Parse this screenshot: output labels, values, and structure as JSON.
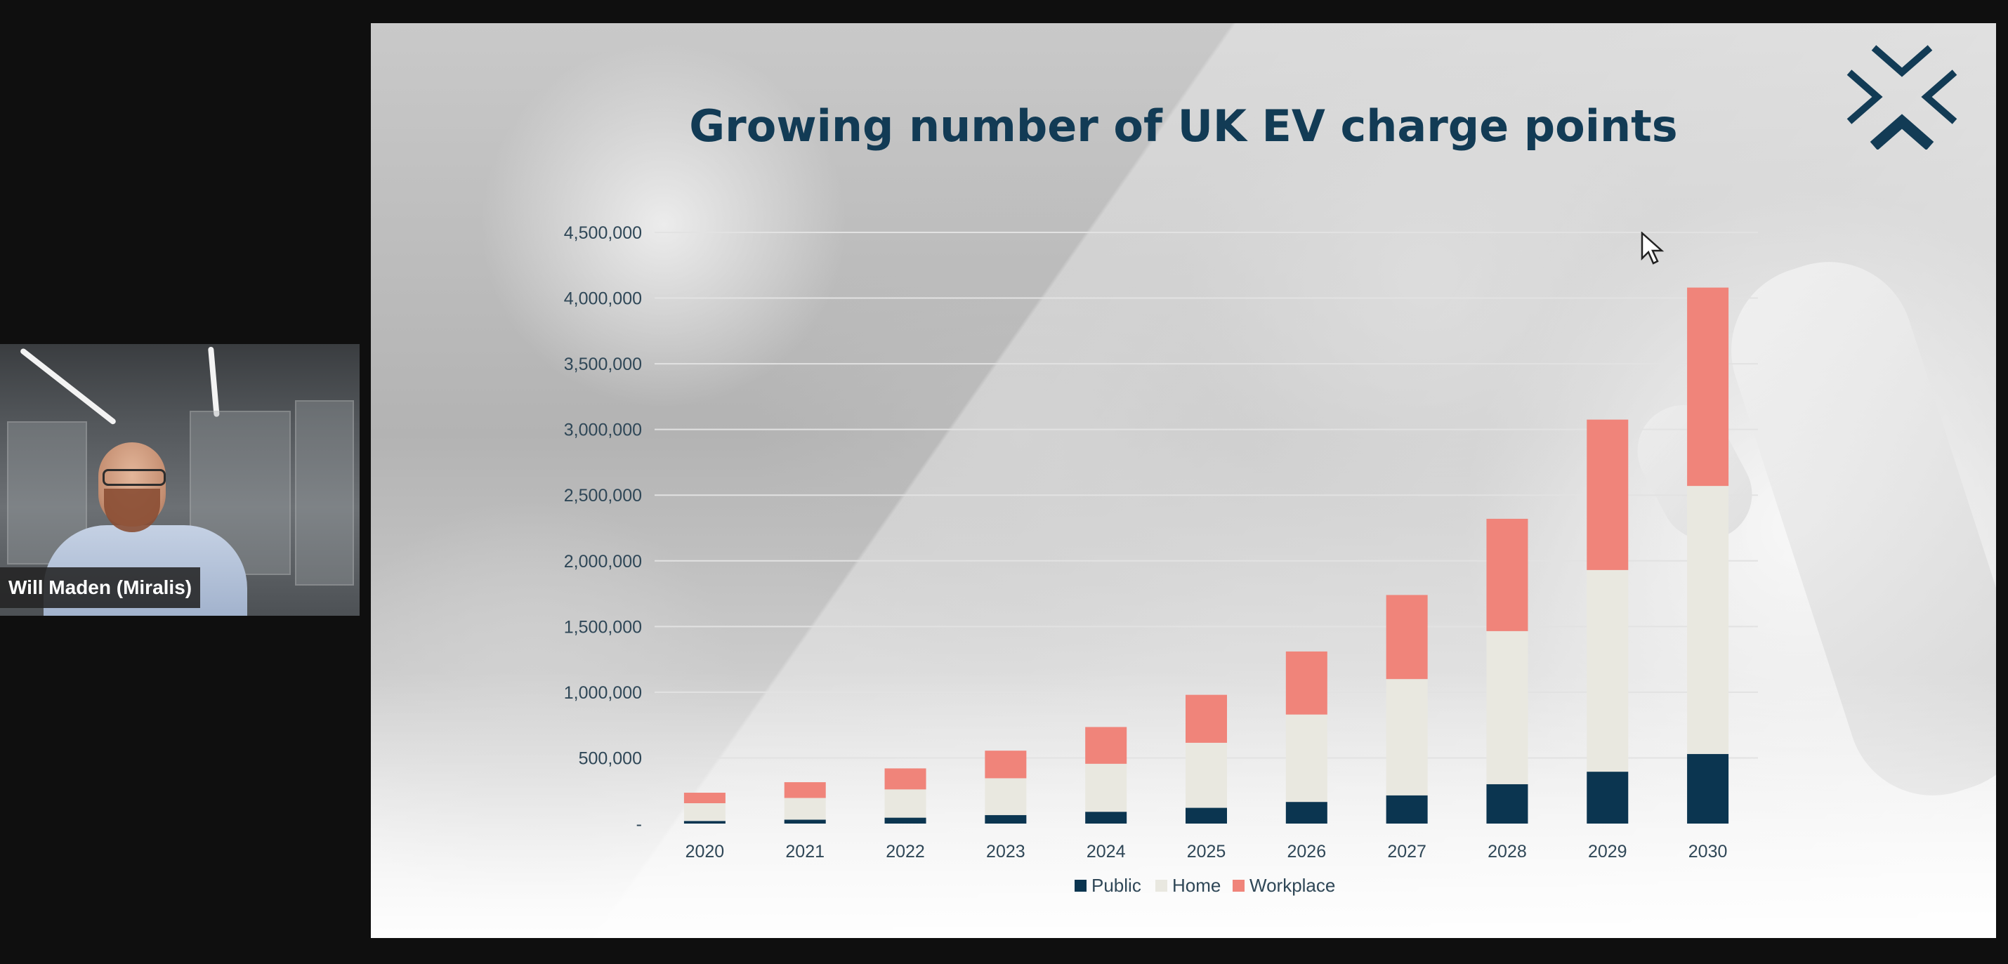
{
  "participant": {
    "name": "Will Maden (Miralis)"
  },
  "slide": {
    "title": "Growing number of UK EV charge points",
    "colors": {
      "title": "#123b55",
      "public": "#0b3550",
      "home": "#e9e8e0",
      "workplace": "#f0847a",
      "grid": "#e2e2e2",
      "axis_text": "#2f4757"
    }
  },
  "chart_data": {
    "type": "bar",
    "stacked": true,
    "title": "Growing number of UK EV charge points",
    "xlabel": "",
    "ylabel": "",
    "categories": [
      "2020",
      "2021",
      "2022",
      "2023",
      "2024",
      "2025",
      "2026",
      "2027",
      "2028",
      "2029",
      "2030"
    ],
    "series": [
      {
        "name": "Public",
        "color": "#0b3550",
        "values": [
          20000,
          30000,
          45000,
          65000,
          90000,
          120000,
          165000,
          215000,
          300000,
          395000,
          530000
        ]
      },
      {
        "name": "Home",
        "color": "#e9e8e0",
        "values": [
          135000,
          165000,
          215000,
          280000,
          365000,
          495000,
          665000,
          885000,
          1165000,
          1535000,
          2040000
        ]
      },
      {
        "name": "Workplace",
        "color": "#f0847a",
        "values": [
          80000,
          120000,
          160000,
          210000,
          280000,
          365000,
          480000,
          640000,
          855000,
          1145000,
          1510000
        ]
      }
    ],
    "ylim": [
      0,
      4500000
    ],
    "yticks": [
      0,
      500000,
      1000000,
      1500000,
      2000000,
      2500000,
      3000000,
      3500000,
      4000000,
      4500000
    ],
    "ytick_labels": [
      "-",
      "500,000",
      "1,000,000",
      "1,500,000",
      "2,000,000",
      "2,500,000",
      "3,000,000",
      "3,500,000",
      "4,000,000",
      "4,500,000"
    ],
    "grid": true,
    "legend": {
      "position": "bottom",
      "entries": [
        "Public",
        "Home",
        "Workplace"
      ]
    }
  }
}
